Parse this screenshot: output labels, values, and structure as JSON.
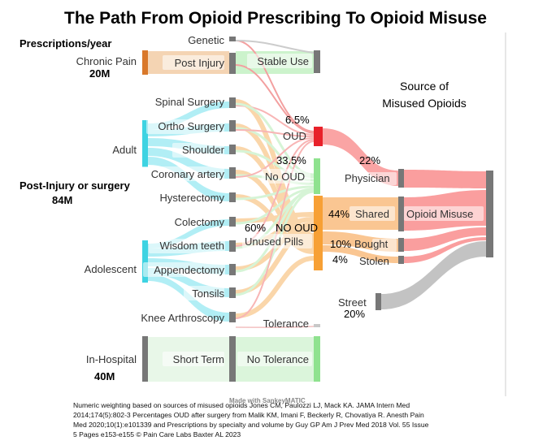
{
  "title": "The Path From Opioid Prescribing To Opioid Misuse",
  "prescriptions_header": "Prescriptions/year",
  "chronic_pain": {
    "label": "Chronic Pain",
    "value": "20M"
  },
  "post_injury_header": "Post-Injury or surgery",
  "post_injury_value": "84M",
  "in_hospital": {
    "label": "In-Hospital",
    "value": "40M"
  },
  "groups": {
    "adult": "Adult",
    "adolescent": "Adolescent"
  },
  "nodes": {
    "genetic": "Genetic",
    "post_injury": "Post Injury",
    "stable_use": "Stable Use",
    "spinal_surgery": "Spinal Surgery",
    "ortho_surgery": "Ortho Surgery",
    "shoulder": "Shoulder",
    "coronary_artery": "Coronary artery",
    "hysterectomy": "Hysterectomy",
    "colectomy": "Colectomy",
    "wisdom_teeth": "Wisdom teeth",
    "appendectomy": "Appendectomy",
    "tonsils": "Tonsils",
    "knee_arthroscopy": "Knee Arthroscopy",
    "short_term": "Short Term",
    "no_tolerance": "No Tolerance",
    "tolerance": "Tolerance",
    "oud": "OUD",
    "no_oud": "No OUD",
    "no_oud_caps": "NO OUD",
    "unused_pills": "Unused Pills",
    "physician": "Physician",
    "shared": "Shared",
    "bought": "Bought",
    "stolen": "Stolen",
    "street": "Street",
    "opioid_misuse": "Opioid Misuse"
  },
  "percentages": {
    "oud": "6.5%",
    "no_oud": "33.5%",
    "unused": "60%",
    "physician": "22%",
    "shared": "44%",
    "bought": "10%",
    "stolen": "4%",
    "street": "20%"
  },
  "source_header": [
    "Source of",
    "Misused Opioids"
  ],
  "made_with": "Made with SankeyMATIC",
  "citation": [
    "Numeric weighting based on sources of misused opioids Jones CM, Paulozzi LJ, Mack KA. JAMA Intern Med",
    "2014;174(5):802-3 Percentages OUD after surgery from Malik KM, Imani F, Beckerly R, Chovatiya R. Anesth Pain",
    "Med 2020;10(1):e101339 and Prescriptions by specialty and volume by Guy GP Am J Prev Med 2018 Vol. 55 Issue",
    "5 Pages e153-e155   © Pain Care Labs Baxter AL 2023"
  ],
  "colors": {
    "chronic": "#d9782a",
    "adult": "#3ed3e2",
    "adolescent": "#3ed3e2",
    "hospital": "#808080",
    "stable": "#8fe28f",
    "oud": "#e8212a",
    "unused": "#f7a035",
    "physician": "#f46e74",
    "street": "#b3b3b3",
    "node_gray": "#777777"
  }
}
